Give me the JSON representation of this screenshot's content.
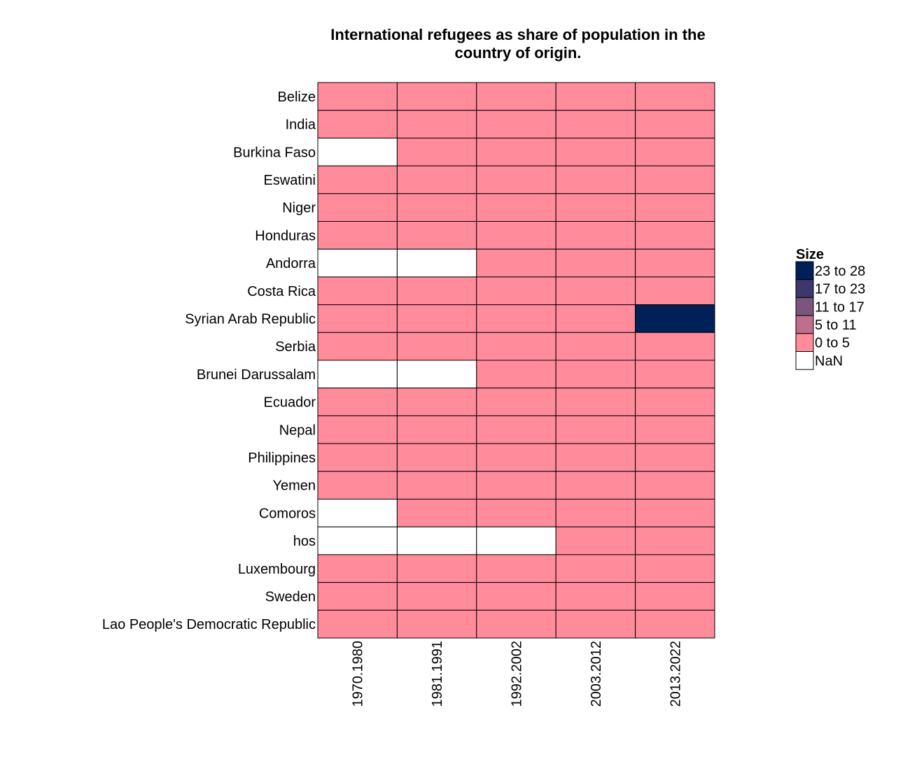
{
  "chart_data": {
    "type": "heatmap",
    "title": "International refugees as share of population in the country of origin.",
    "title_lines": [
      "International refugees as share of population in the",
      "country of origin."
    ],
    "xlabel": "",
    "ylabel": "",
    "x_categories": [
      "1970.1980",
      "1981.1991",
      "1992.2002",
      "2003.2012",
      "2013.2022"
    ],
    "y_categories": [
      "Belize",
      "India",
      "Burkina Faso",
      "Eswatini",
      "Niger",
      "Honduras",
      "Andorra",
      "Costa Rica",
      "Syrian Arab Republic",
      "Serbia",
      "Brunei Darussalam",
      "Ecuador",
      "Nepal",
      "Philippines",
      "Yemen",
      "Comoros",
      "hos",
      "Luxembourg",
      "Sweden",
      "Lao People's Democratic Republic"
    ],
    "cells": [
      [
        "0 to 5",
        "0 to 5",
        "0 to 5",
        "0 to 5",
        "0 to 5"
      ],
      [
        "0 to 5",
        "0 to 5",
        "0 to 5",
        "0 to 5",
        "0 to 5"
      ],
      [
        "NaN",
        "0 to 5",
        "0 to 5",
        "0 to 5",
        "0 to 5"
      ],
      [
        "0 to 5",
        "0 to 5",
        "0 to 5",
        "0 to 5",
        "0 to 5"
      ],
      [
        "0 to 5",
        "0 to 5",
        "0 to 5",
        "0 to 5",
        "0 to 5"
      ],
      [
        "0 to 5",
        "0 to 5",
        "0 to 5",
        "0 to 5",
        "0 to 5"
      ],
      [
        "NaN",
        "NaN",
        "0 to 5",
        "0 to 5",
        "0 to 5"
      ],
      [
        "0 to 5",
        "0 to 5",
        "0 to 5",
        "0 to 5",
        "0 to 5"
      ],
      [
        "0 to 5",
        "0 to 5",
        "0 to 5",
        "0 to 5",
        "23 to 28"
      ],
      [
        "0 to 5",
        "0 to 5",
        "0 to 5",
        "0 to 5",
        "0 to 5"
      ],
      [
        "NaN",
        "NaN",
        "0 to 5",
        "0 to 5",
        "0 to 5"
      ],
      [
        "0 to 5",
        "0 to 5",
        "0 to 5",
        "0 to 5",
        "0 to 5"
      ],
      [
        "0 to 5",
        "0 to 5",
        "0 to 5",
        "0 to 5",
        "0 to 5"
      ],
      [
        "0 to 5",
        "0 to 5",
        "0 to 5",
        "0 to 5",
        "0 to 5"
      ],
      [
        "0 to 5",
        "0 to 5",
        "0 to 5",
        "0 to 5",
        "0 to 5"
      ],
      [
        "NaN",
        "0 to 5",
        "0 to 5",
        "0 to 5",
        "0 to 5"
      ],
      [
        "NaN",
        "NaN",
        "NaN",
        "0 to 5",
        "0 to 5"
      ],
      [
        "0 to 5",
        "0 to 5",
        "0 to 5",
        "0 to 5",
        "0 to 5"
      ],
      [
        "0 to 5",
        "0 to 5",
        "0 to 5",
        "0 to 5",
        "0 to 5"
      ],
      [
        "0 to 5",
        "0 to 5",
        "0 to 5",
        "0 to 5",
        "0 to 5"
      ]
    ],
    "legend": {
      "title": "Size",
      "placement": "right",
      "entries": [
        {
          "label": "23 to 28",
          "color": "#002157"
        },
        {
          "label": "17 to 23",
          "color": "#3d376d"
        },
        {
          "label": "11 to 17",
          "color": "#7b557b"
        },
        {
          "label": "5 to 11",
          "color": "#bd6f8d"
        },
        {
          "label": "0 to 5",
          "color": "#ff8b9b"
        },
        {
          "label": "NaN",
          "color": "#ffffff"
        }
      ]
    },
    "grid": false,
    "cell_border_color": "#000000"
  }
}
